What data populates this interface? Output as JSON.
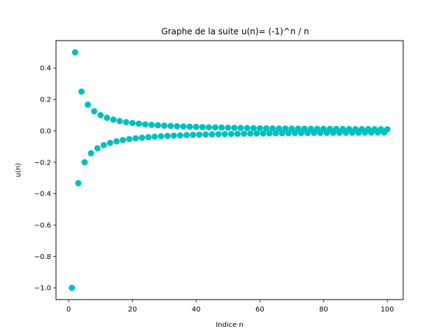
{
  "chart_data": {
    "type": "scatter",
    "title": "Graphe de la suite u(n)= (-1)^n / n",
    "xlabel": "Indice n",
    "ylabel": "u(n)",
    "xlim": [
      -4,
      105
    ],
    "ylim": [
      -1.075,
      0.575
    ],
    "xticks": [
      0,
      20,
      40,
      60,
      80,
      100
    ],
    "xtick_labels": [
      "0",
      "20",
      "40",
      "60",
      "80",
      "100"
    ],
    "yticks": [
      -1.0,
      -0.8,
      -0.6,
      -0.4,
      -0.2,
      0.0,
      0.2,
      0.4
    ],
    "ytick_labels": [
      "−1.0",
      "−0.8",
      "−0.6",
      "−0.4",
      "−0.2",
      "0.0",
      "0.2",
      "0.4"
    ],
    "grid": false,
    "legend": "none",
    "marker_color": "#00bfbf",
    "series": [
      {
        "x": [
          1,
          2,
          3,
          4,
          5,
          6,
          7,
          8,
          9,
          10,
          11,
          12,
          13,
          14,
          15,
          16,
          17,
          18,
          19,
          20,
          21,
          22,
          23,
          24,
          25,
          26,
          27,
          28,
          29,
          30,
          31,
          32,
          33,
          34,
          35,
          36,
          37,
          38,
          39,
          40,
          41,
          42,
          43,
          44,
          45,
          46,
          47,
          48,
          49,
          50,
          51,
          52,
          53,
          54,
          55,
          56,
          57,
          58,
          59,
          60,
          61,
          62,
          63,
          64,
          65,
          66,
          67,
          68,
          69,
          70,
          71,
          72,
          73,
          74,
          75,
          76,
          77,
          78,
          79,
          80,
          81,
          82,
          83,
          84,
          85,
          86,
          87,
          88,
          89,
          90,
          91,
          92,
          93,
          94,
          95,
          96,
          97,
          98,
          99,
          100
        ],
        "y": [
          -1.0,
          0.5,
          -0.3333,
          0.25,
          -0.2,
          0.1667,
          -0.1429,
          0.125,
          -0.1111,
          0.1,
          -0.0909,
          0.0833,
          -0.0769,
          0.0714,
          -0.0667,
          0.0625,
          -0.0588,
          0.0556,
          -0.0526,
          0.05,
          -0.0476,
          0.0455,
          -0.0435,
          0.0417,
          -0.04,
          0.0385,
          -0.037,
          0.0357,
          -0.0345,
          0.0333,
          -0.0323,
          0.0313,
          -0.0303,
          0.0294,
          -0.0286,
          0.0278,
          -0.027,
          0.0263,
          -0.0256,
          0.025,
          -0.0244,
          0.0238,
          -0.0233,
          0.0227,
          -0.0222,
          0.0217,
          -0.0213,
          0.0208,
          -0.0204,
          0.02,
          -0.0196,
          0.0192,
          -0.0189,
          0.0185,
          -0.0182,
          0.0179,
          -0.0175,
          0.0172,
          -0.0169,
          0.0167,
          -0.0164,
          0.0161,
          -0.0159,
          0.0156,
          -0.0154,
          0.0152,
          -0.0149,
          0.0147,
          -0.0145,
          0.0143,
          -0.0141,
          0.0139,
          -0.0137,
          0.0135,
          -0.0133,
          0.0132,
          -0.013,
          0.0128,
          -0.0127,
          0.0125,
          -0.0123,
          0.0122,
          -0.012,
          0.0119,
          -0.0118,
          0.0116,
          -0.0115,
          0.0114,
          -0.0112,
          0.0111,
          -0.011,
          0.0109,
          -0.0108,
          0.0106,
          -0.0105,
          0.0104,
          -0.0103,
          0.0102,
          -0.0101,
          0.01
        ]
      }
    ]
  }
}
